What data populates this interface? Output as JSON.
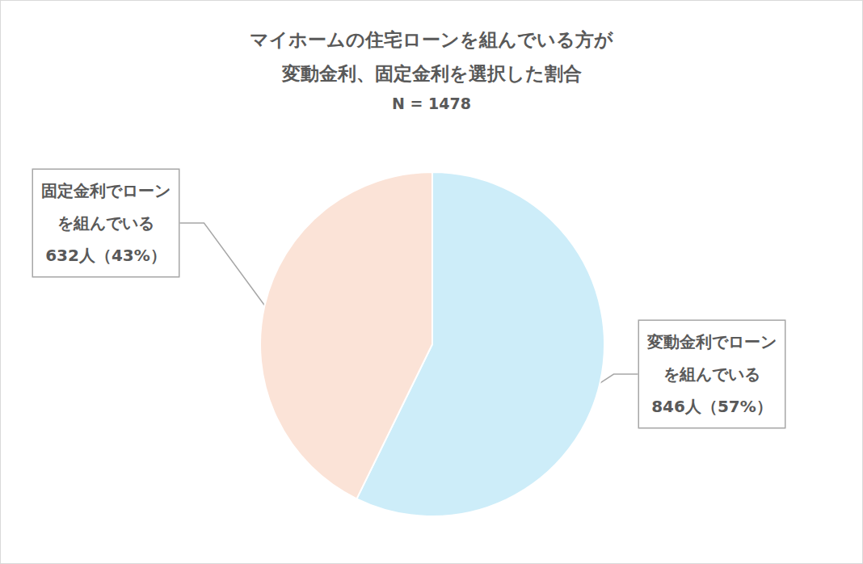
{
  "chart_data": {
    "type": "pie",
    "title": "マイホームの住宅ローンを組んでいる方が\n変動金利、固定金利を選択した割合",
    "subtitle": "N = 1478",
    "categories": [
      "変動金利でローン\nを組んでいる",
      "固定金利でローン\nを組んでいる"
    ],
    "values": [
      846,
      632
    ],
    "value_labels": [
      "846人（57%）",
      "632人（43%）"
    ],
    "colors": [
      "#cdedf9",
      "#fbe3d7"
    ],
    "data_labels": true,
    "legend": false
  }
}
